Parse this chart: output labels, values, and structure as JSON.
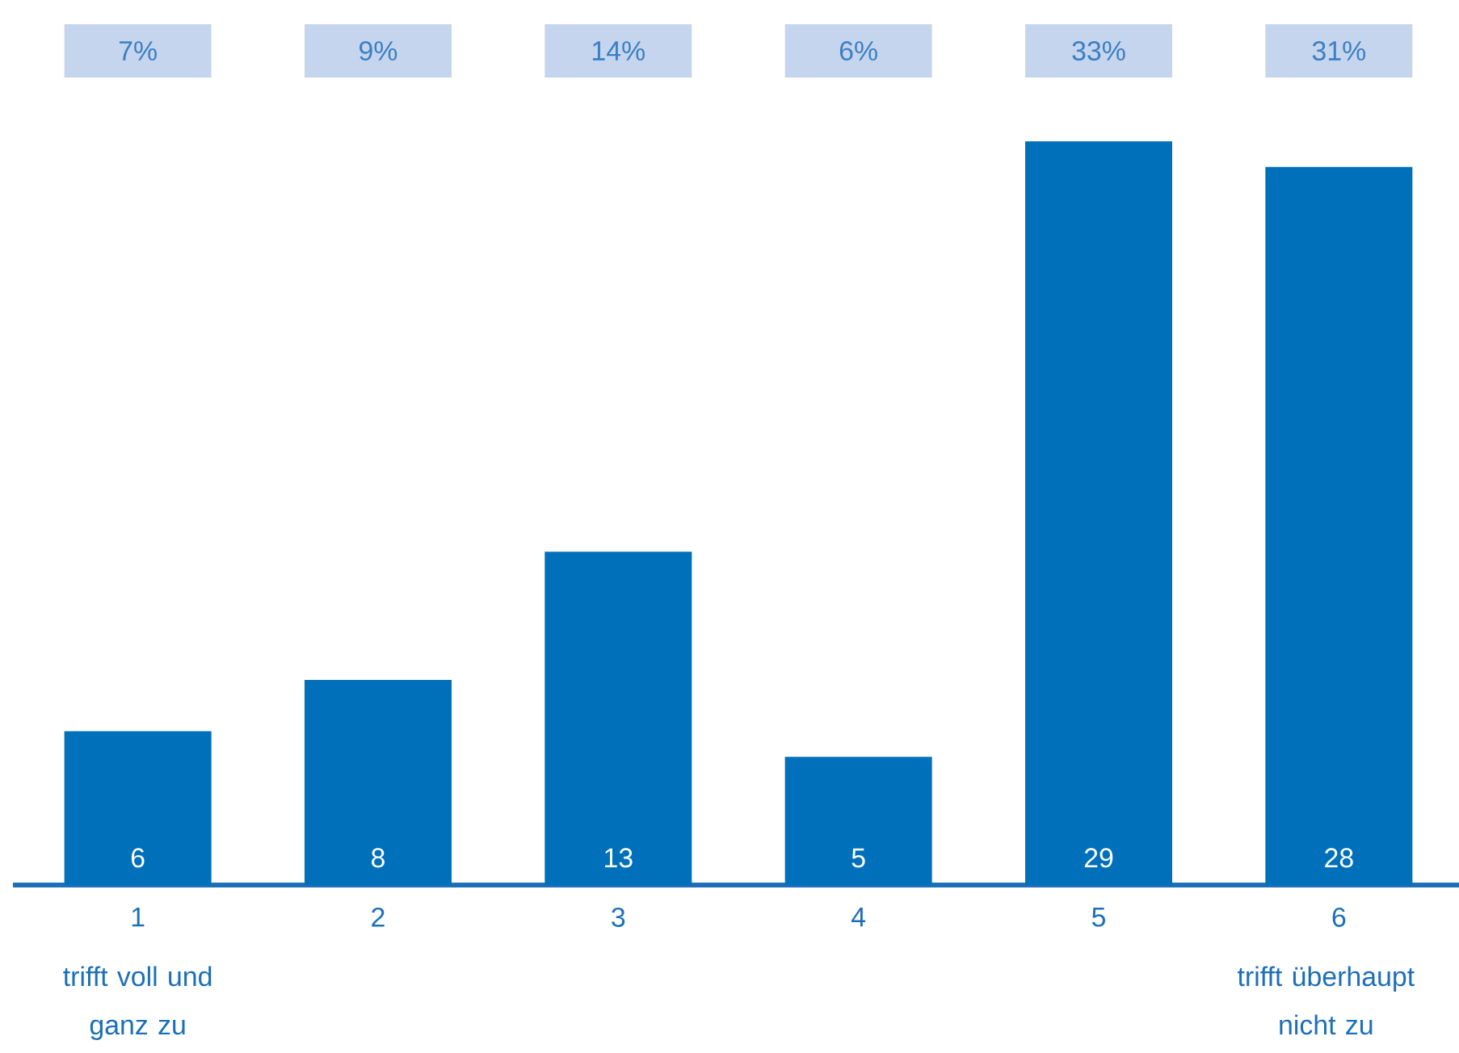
{
  "chart_data": {
    "type": "bar",
    "categories": [
      "1",
      "2",
      "3",
      "4",
      "5",
      "6"
    ],
    "values": [
      6,
      8,
      13,
      5,
      29,
      28
    ],
    "color": "#0070ba",
    "data_labels": true,
    "annotations": [
      "7%",
      "9%",
      "14%",
      "6%",
      "33%",
      "31%",
      "trifft voll und ganz zu",
      "trifft überhaupt nicht zu"
    ],
    "grid": false
  }
}
